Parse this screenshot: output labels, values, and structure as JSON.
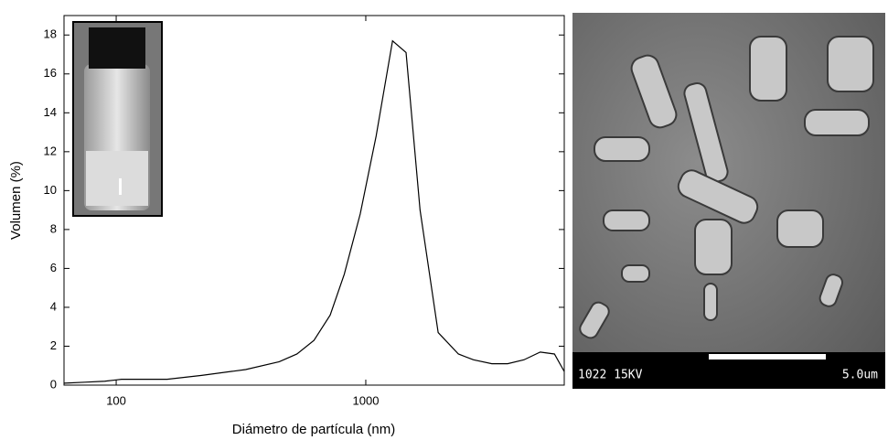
{
  "chart_data": {
    "type": "line",
    "xlabel": "Diámetro de partícula (nm)",
    "ylabel": "Volumen (%)",
    "xscale": "log",
    "xlim": [
      61.8,
      6240
    ],
    "ylim": [
      0,
      19
    ],
    "xticks": [
      100,
      1000
    ],
    "yticks": [
      0,
      2,
      4,
      6,
      8,
      10,
      12,
      14,
      16,
      18
    ],
    "x": [
      62,
      75,
      90,
      105,
      160,
      220,
      330,
      450,
      530,
      620,
      720,
      820,
      950,
      1100,
      1280,
      1450,
      1650,
      1950,
      2350,
      2700,
      3200,
      3700,
      4300,
      5000,
      5700,
      6240
    ],
    "series": [
      {
        "color": "#000000",
        "values": [
          0.1,
          0.15,
          0.2,
          0.3,
          0.3,
          0.5,
          0.8,
          1.2,
          1.6,
          2.3,
          3.6,
          5.7,
          8.8,
          12.8,
          17.7,
          17.1,
          9,
          2.7,
          1.6,
          1.3,
          1.1,
          1.1,
          1.3,
          1.7,
          1.6,
          0.7
        ]
      }
    ]
  },
  "sem_image": {
    "label": "1022 15KV",
    "scale_label": "5.0um"
  }
}
